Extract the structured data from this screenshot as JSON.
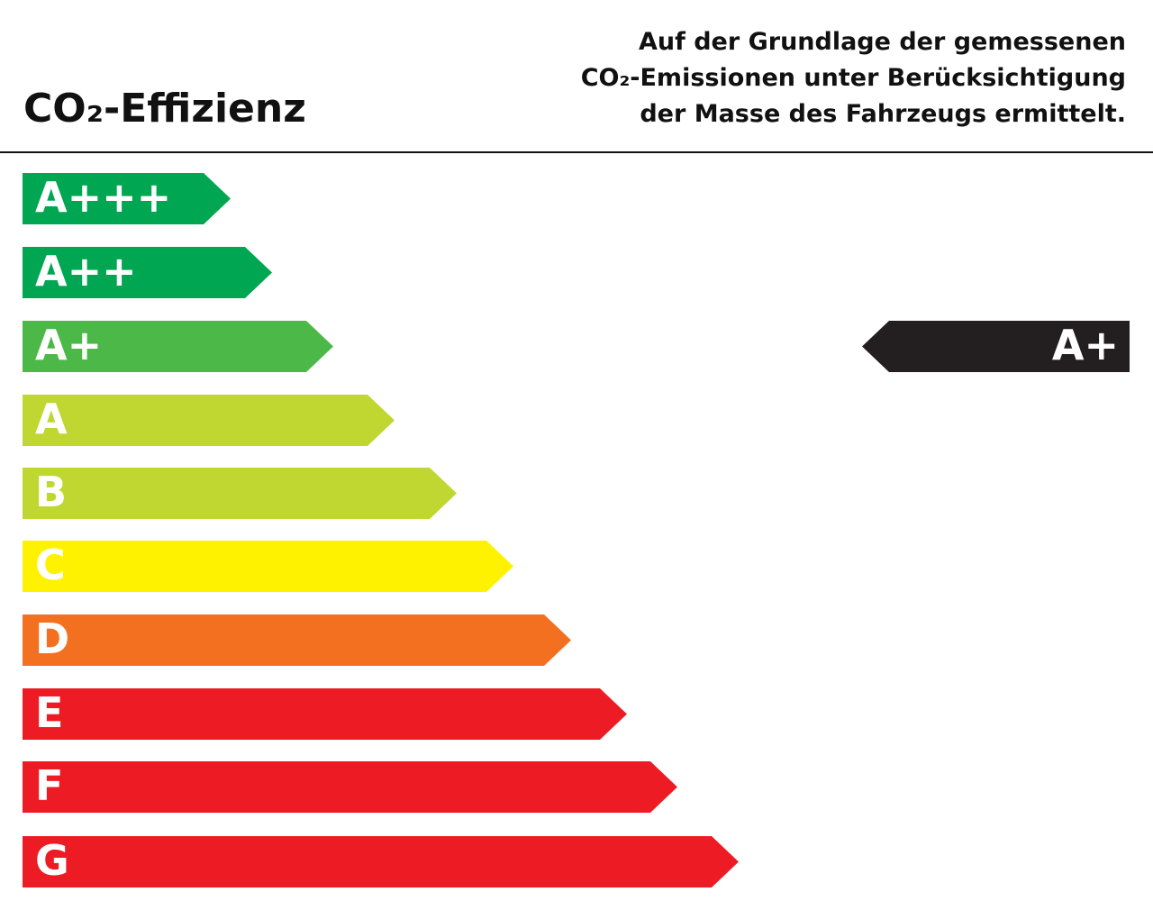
{
  "header": {
    "title": "CO₂-Effizienz",
    "description": [
      "Auf der Grundlage der gemessenen",
      "CO₂-Emissionen unter Berücksichtigung",
      "der Masse des Fahrzeugs ermittelt."
    ]
  },
  "classes": [
    {
      "label": "A+++",
      "color": "#00a651"
    },
    {
      "label": "A++",
      "color": "#00a651"
    },
    {
      "label": "A+",
      "color": "#4cb848"
    },
    {
      "label": "A",
      "color": "#bfd730"
    },
    {
      "label": "B",
      "color": "#bfd730"
    },
    {
      "label": "C",
      "color": "#fff200"
    },
    {
      "label": "D",
      "color": "#f37021"
    },
    {
      "label": "E",
      "color": "#ed1c24"
    },
    {
      "label": "F",
      "color": "#ed1c24"
    },
    {
      "label": "G",
      "color": "#ed1c24"
    }
  ],
  "rating": {
    "label": "A+",
    "color": "#231f20"
  }
}
